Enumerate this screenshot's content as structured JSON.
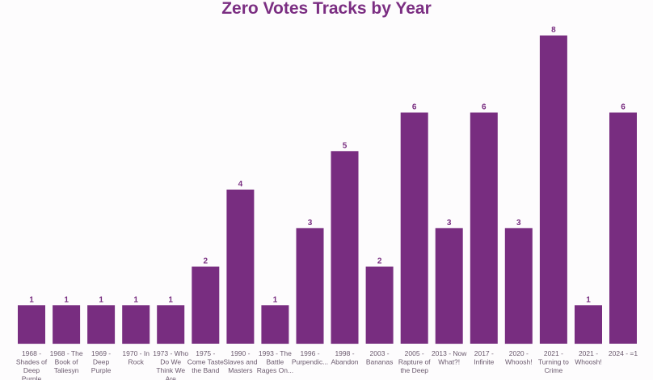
{
  "chart_data": {
    "type": "bar",
    "title": "Zero Votes Tracks by Year",
    "xlabel": "",
    "ylabel": "",
    "ylim": [
      0,
      8
    ],
    "grid": false,
    "legend": "none",
    "bar_color": "#782d80",
    "categories": [
      "1968 - Shades of Deep Purple",
      "1968 - The Book of Taliesyn",
      "1969 - Deep Purple",
      "1970 - In Rock",
      "1973 - Who Do We Think We Are",
      "1975 - Come Taste the Band",
      "1990 - Slaves and Masters",
      "1993 - The Battle Rages On...",
      "1996 - Purpendicular",
      "1998 - Abandon",
      "2003 - Bananas",
      "2005 - Rapture of the Deep",
      "2013 - Now What?!",
      "2017 - Infinite",
      "2020 - Whoosh!",
      "2021 - Turning to Crime",
      "2021 - Whoosh!",
      "2024 - =1"
    ],
    "tick_labels": [
      [
        "1968 -",
        "Shades of",
        "Deep",
        "Purple"
      ],
      [
        "1968 - The",
        "Book of",
        "Taliesyn"
      ],
      [
        "1969 -",
        "Deep",
        "Purple"
      ],
      [
        "1970 - In",
        "Rock"
      ],
      [
        "1973 - Who",
        "Do We",
        "Think We",
        "Are"
      ],
      [
        "1975 -",
        "Come Taste",
        "the Band"
      ],
      [
        "1990 -",
        "Slaves and",
        "Masters"
      ],
      [
        "1993 - The",
        "Battle",
        "Rages On..."
      ],
      [
        "1996 -",
        "Purpendic..."
      ],
      [
        "1998 -",
        "Abandon"
      ],
      [
        "2003 -",
        "Bananas"
      ],
      [
        "2005 -",
        "Rapture of",
        "the Deep"
      ],
      [
        "2013 - Now",
        "What?!"
      ],
      [
        "2017 -",
        "Infinite"
      ],
      [
        "2020 -",
        "Whoosh!"
      ],
      [
        "2021 -",
        "Turning to",
        "Crime"
      ],
      [
        "2021 -",
        "Whoosh!"
      ],
      [
        "2024 - =1"
      ]
    ],
    "values": [
      1,
      1,
      1,
      1,
      1,
      2,
      4,
      1,
      3,
      5,
      2,
      6,
      3,
      6,
      3,
      8,
      1,
      6
    ]
  }
}
